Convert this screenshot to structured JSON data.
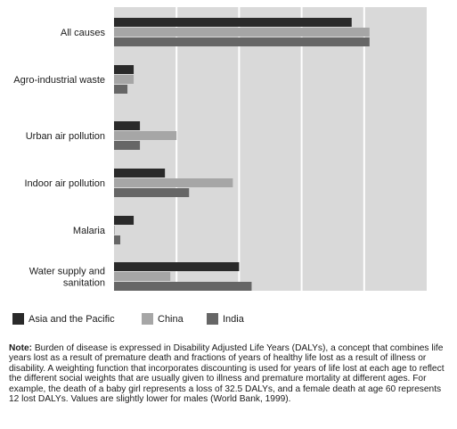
{
  "chart_data": {
    "type": "bar",
    "orientation": "horizontal",
    "categories": [
      "All causes",
      "Agro-industrial waste",
      "Urban air pollution",
      "Indoor air pollution",
      "Malaria",
      "Water supply and sanitation"
    ],
    "series": [
      {
        "name": "Asia and the Pacific",
        "color": "#2a2a2a",
        "values": [
          26.6,
          2.2,
          2.9,
          5.7,
          2.2,
          14.0
        ]
      },
      {
        "name": "China",
        "color": "#a6a6a6",
        "values": [
          28.6,
          2.2,
          7.0,
          13.3,
          0.1,
          6.3
        ]
      },
      {
        "name": "India",
        "color": "#666666",
        "values": [
          28.6,
          1.5,
          2.9,
          8.4,
          0.7,
          15.4
        ]
      }
    ],
    "xlim": [
      0,
      35
    ],
    "xticks": [
      0,
      7,
      14,
      21,
      28,
      35
    ],
    "grid": true,
    "plot_background": "#d9d9d9",
    "grid_color": "#ffffff",
    "legend_position": "bottom"
  },
  "note": {
    "label": "Note:",
    "text": " Burden of disease is expressed in Disability Adjusted Life Years (DALYs), a concept that combines life years lost as a result of premature death and fractions of years of healthy life lost as a result of illness or disability. A weighting function that incorporates discounting is used for years of life lost at each age to reflect the different social weights that are usually given to illness and premature mortality at different ages. For example, the death of a baby girl represents a loss of 32.5 DALYs, and a female death at age 60 represents 12 lost DALYs. Values are slightly lower for males (World Bank, 1999)."
  }
}
